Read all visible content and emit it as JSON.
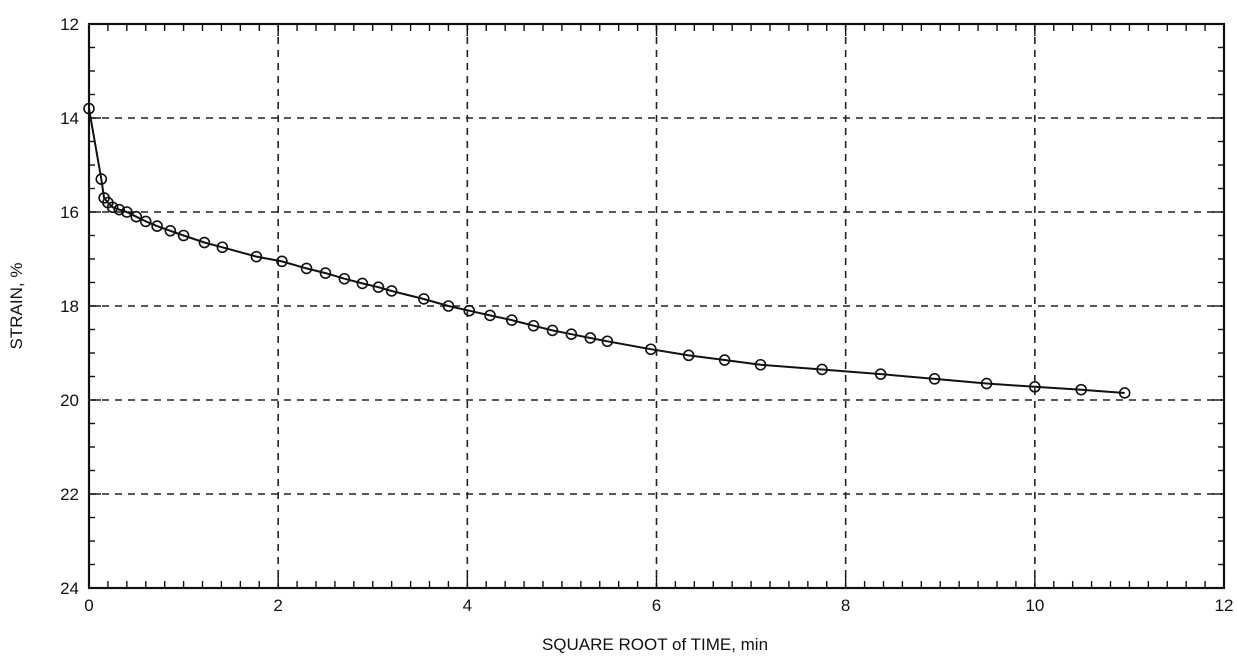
{
  "chart_data": {
    "type": "line",
    "title": "",
    "xlabel": "SQUARE ROOT of TIME, min",
    "ylabel": "STRAIN, %",
    "xlim": [
      0,
      12
    ],
    "ylim": [
      24,
      12
    ],
    "y_inverted": true,
    "xticks": [
      "0",
      "2",
      "4",
      "6",
      "8",
      "10",
      "12"
    ],
    "yticks": [
      "12",
      "14",
      "16",
      "18",
      "20",
      "22",
      "24"
    ],
    "grid": true,
    "grid_style": "dashed",
    "marker": "open-circle",
    "series": [
      {
        "x": [
          0.0,
          0.13,
          0.16,
          0.2,
          0.25,
          0.32,
          0.4,
          0.5,
          0.6,
          0.72,
          0.86,
          1.0,
          1.22,
          1.41,
          1.77,
          2.04,
          2.3,
          2.5,
          2.7,
          2.89,
          3.06,
          3.2,
          3.54,
          3.8,
          4.02,
          4.24,
          4.47,
          4.7,
          4.9,
          5.1,
          5.3,
          5.48,
          5.94,
          6.34,
          6.72,
          7.1,
          7.75,
          8.37,
          8.94,
          9.49,
          10.0,
          10.49,
          10.95
        ],
        "y": [
          13.8,
          15.3,
          15.7,
          15.8,
          15.9,
          15.95,
          16.0,
          16.1,
          16.2,
          16.3,
          16.4,
          16.5,
          16.65,
          16.75,
          16.95,
          17.05,
          17.2,
          17.3,
          17.42,
          17.52,
          17.6,
          17.68,
          17.85,
          18.0,
          18.1,
          18.2,
          18.3,
          18.42,
          18.52,
          18.6,
          18.68,
          18.75,
          18.92,
          19.05,
          19.15,
          19.25,
          19.35,
          19.45,
          19.55,
          19.65,
          19.72,
          19.78,
          19.85
        ]
      }
    ]
  }
}
